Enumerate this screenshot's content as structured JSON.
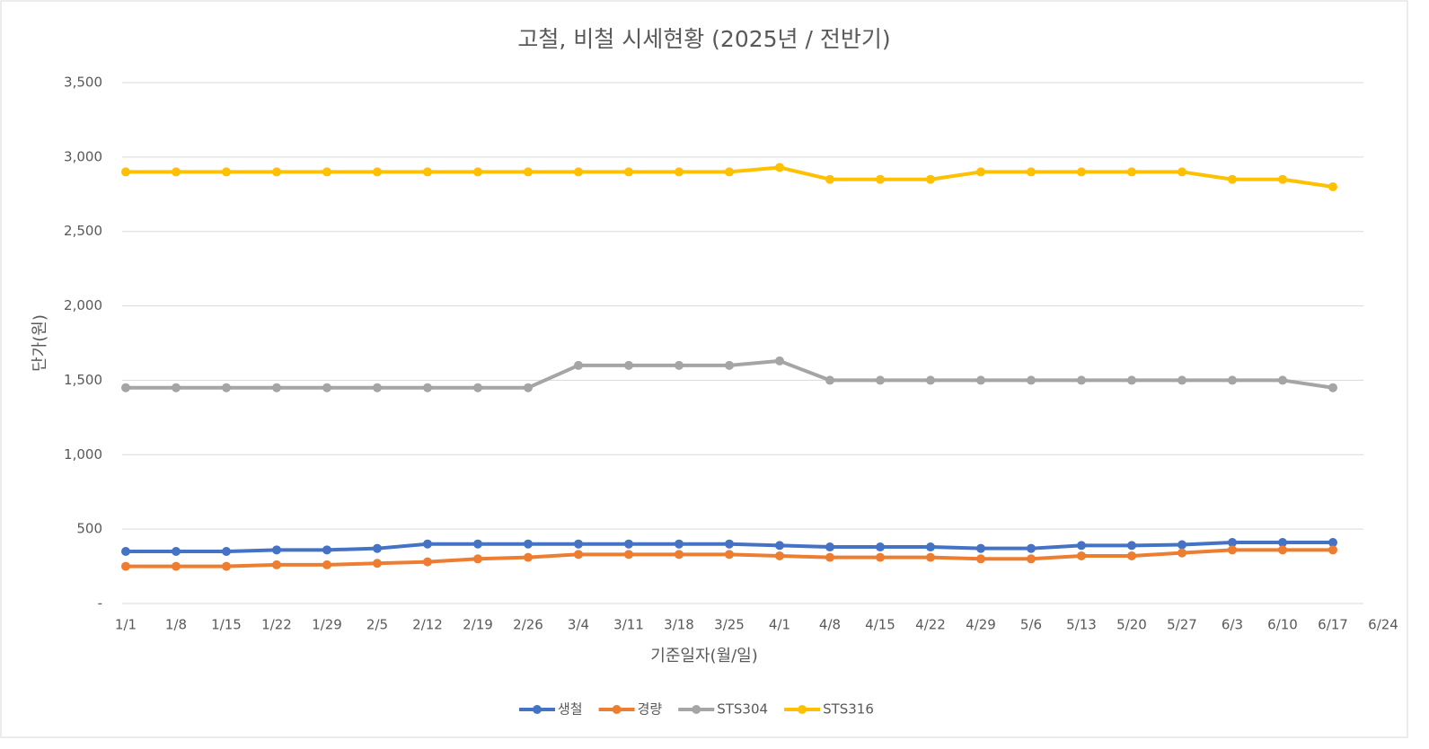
{
  "chart_data": {
    "type": "line",
    "title": "고철, 비철 시세현황 (2025년 / 전반기)",
    "x_label": "기준일자(월/일)",
    "y_label": "단가(원)",
    "categories": [
      "1/1",
      "1/8",
      "1/15",
      "1/22",
      "1/29",
      "2/5",
      "2/12",
      "2/19",
      "2/26",
      "3/4",
      "3/11",
      "3/18",
      "3/25",
      "4/1",
      "4/8",
      "4/15",
      "4/22",
      "4/29",
      "5/6",
      "5/13",
      "5/20",
      "5/27",
      "6/3",
      "6/10",
      "6/17",
      "6/24"
    ],
    "series": [
      {
        "name": "생철",
        "color": "#4472c4",
        "values": [
          350,
          350,
          350,
          360,
          360,
          370,
          400,
          400,
          400,
          400,
          400,
          400,
          400,
          390,
          380,
          380,
          380,
          370,
          370,
          390,
          390,
          395,
          410,
          410,
          410,
          null
        ]
      },
      {
        "name": "경량",
        "color": "#ed7d31",
        "values": [
          250,
          250,
          250,
          260,
          260,
          270,
          280,
          300,
          310,
          330,
          330,
          330,
          330,
          320,
          310,
          310,
          310,
          300,
          300,
          320,
          320,
          340,
          360,
          360,
          360,
          null
        ]
      },
      {
        "name": "STS304",
        "color": "#a5a5a5",
        "values": [
          1450,
          1450,
          1450,
          1450,
          1450,
          1450,
          1450,
          1450,
          1450,
          1600,
          1600,
          1600,
          1600,
          1630,
          1500,
          1500,
          1500,
          1500,
          1500,
          1500,
          1500,
          1500,
          1500,
          1500,
          1450,
          null
        ]
      },
      {
        "name": "STS316",
        "color": "#ffc000",
        "values": [
          2900,
          2900,
          2900,
          2900,
          2900,
          2900,
          2900,
          2900,
          2900,
          2900,
          2900,
          2900,
          2900,
          2930,
          2850,
          2850,
          2850,
          2900,
          2900,
          2900,
          2900,
          2900,
          2850,
          2850,
          2800,
          null
        ]
      }
    ],
    "ylim": [
      0,
      3500
    ],
    "yticks": [
      {
        "value": 0,
        "label": "-"
      },
      500,
      {
        "value": 1000,
        "label": "1,000"
      },
      {
        "value": 1500,
        "label": "1,500"
      },
      {
        "value": 2000,
        "label": "2,000"
      },
      {
        "value": 2500,
        "label": "2,500"
      },
      {
        "value": 3000,
        "label": "3,000"
      },
      {
        "value": 3500,
        "label": "3,500"
      }
    ],
    "grid": true,
    "legend": "bottom"
  }
}
